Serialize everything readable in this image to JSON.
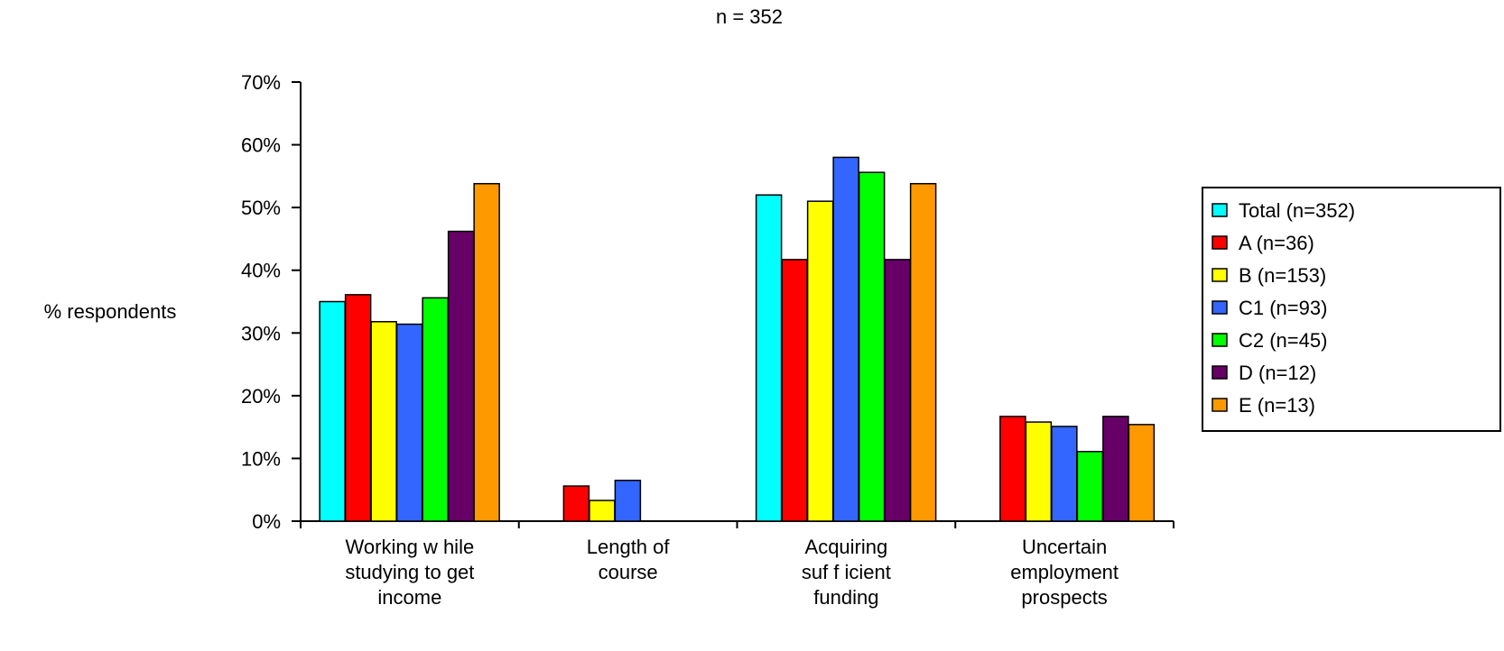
{
  "chart_data": {
    "type": "bar",
    "title": "n = 352",
    "ylabel": "% respondents",
    "xlabel": "",
    "ylim": [
      0,
      70
    ],
    "y_unit": "%",
    "y_ticks": [
      0,
      10,
      20,
      30,
      40,
      50,
      60,
      70
    ],
    "grid": false,
    "legend_position": "right",
    "categories": [
      [
        "Working w hile",
        "studying to get",
        "income"
      ],
      [
        "Length of",
        "course"
      ],
      [
        "Acquiring",
        "suf f icient",
        "funding"
      ],
      [
        "Uncertain",
        "employment",
        "prospects"
      ]
    ],
    "series": [
      {
        "name": "Total (n=352)",
        "color": "#00FFFF",
        "values": [
          35,
          null,
          52,
          null
        ]
      },
      {
        "name": "A (n=36)",
        "color": "#FF0000",
        "values": [
          36.1,
          5.6,
          41.7,
          16.7
        ]
      },
      {
        "name": "B (n=153)",
        "color": "#FFFF00",
        "values": [
          31.8,
          3.3,
          51,
          15.8
        ]
      },
      {
        "name": "C1 (n=93)",
        "color": "#3366FF",
        "values": [
          31.4,
          6.5,
          58,
          15.1
        ]
      },
      {
        "name": "C2 (n=45)",
        "color": "#00FF00",
        "values": [
          35.6,
          null,
          55.6,
          11.1
        ]
      },
      {
        "name": "D (n=12)",
        "color": "#660066",
        "values": [
          46.2,
          null,
          41.7,
          16.7
        ]
      },
      {
        "name": "E (n=13)",
        "color": "#FF9900",
        "values": [
          53.8,
          null,
          53.8,
          15.4
        ]
      }
    ]
  }
}
